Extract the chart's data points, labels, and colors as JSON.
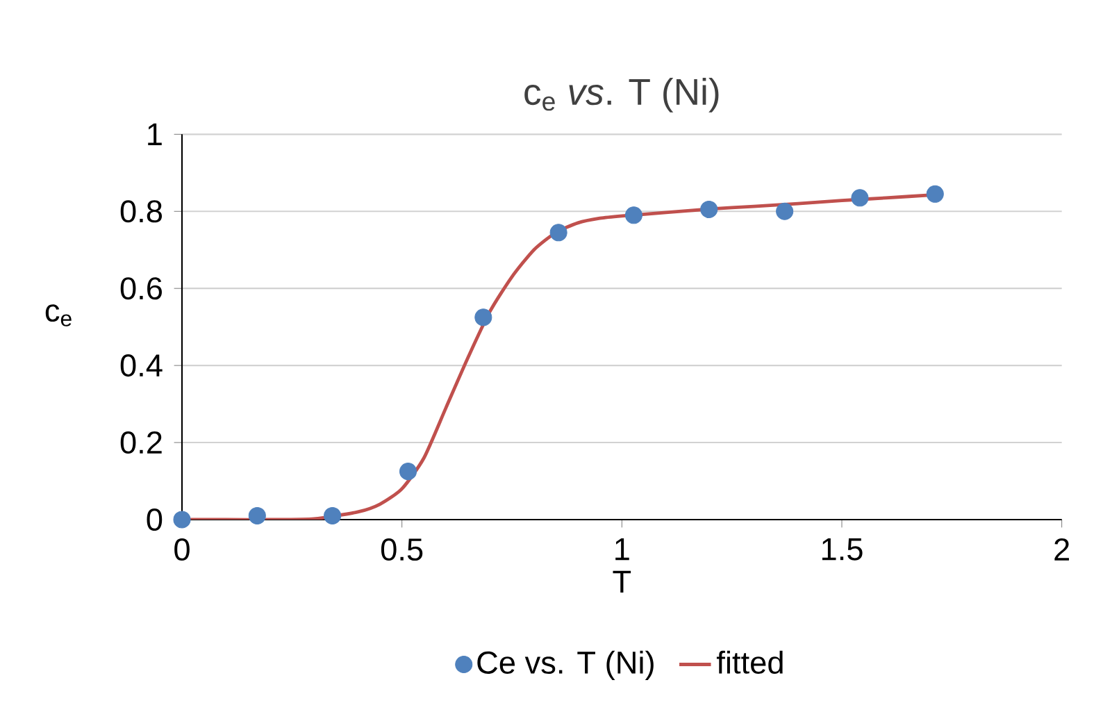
{
  "chart_data": {
    "type": "scatter",
    "title": "c$_{e}$ *vs*. T (Ni)",
    "xlabel": "T",
    "ylabel": "c$_{e}$",
    "xlim": [
      0,
      2
    ],
    "ylim": [
      0,
      1
    ],
    "xticks": [
      0,
      0.5,
      1,
      1.5,
      2
    ],
    "yticks": [
      0,
      0.2,
      0.4,
      0.6,
      0.8,
      1
    ],
    "grid": "y",
    "legend": "bottom",
    "series": [
      {
        "name": "Ce vs. T (Ni)",
        "color": "#4f81bd",
        "x": [
          0,
          0.171,
          0.342,
          0.514,
          0.685,
          0.856,
          1.027,
          1.198,
          1.37,
          1.541,
          1.712
        ],
        "values": [
          0,
          0.01,
          0.01,
          0.125,
          0.525,
          0.745,
          0.79,
          0.805,
          0.8,
          0.835,
          0.845
        ]
      },
      {
        "name": "fitted",
        "type": "line",
        "color": "#c0504d",
        "x": [
          0,
          0.1,
          0.2,
          0.3,
          0.4,
          0.45,
          0.5,
          0.55,
          0.6,
          0.65,
          0.7,
          0.75,
          0.8,
          0.85,
          0.9,
          0.95,
          1.0,
          1.1,
          1.2,
          1.3,
          1.4,
          1.5,
          1.6,
          1.712
        ],
        "values": [
          0,
          0,
          0,
          0.002,
          0.02,
          0.04,
          0.08,
          0.16,
          0.29,
          0.42,
          0.54,
          0.63,
          0.7,
          0.745,
          0.77,
          0.782,
          0.788,
          0.797,
          0.806,
          0.813,
          0.82,
          0.828,
          0.835,
          0.843
        ]
      }
    ]
  }
}
